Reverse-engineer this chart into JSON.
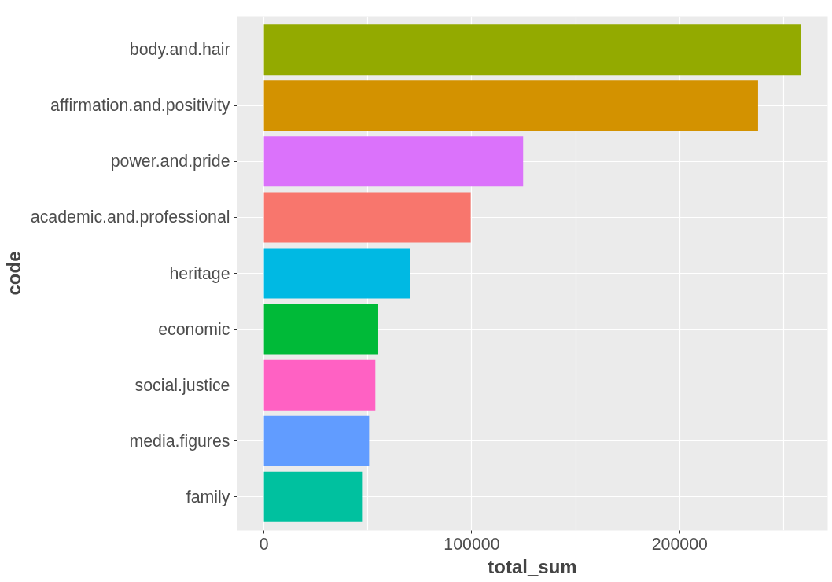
{
  "chart_data": {
    "type": "bar",
    "orientation": "horizontal",
    "xlabel": "total_sum",
    "ylabel": "code",
    "categories": [
      "body.and.hair",
      "affirmation.and.positivity",
      "power.and.pride",
      "academic.and.professional",
      "heritage",
      "economic",
      "social.justice",
      "media.figures",
      "family"
    ],
    "values": [
      258300,
      237700,
      124700,
      99500,
      70200,
      55000,
      53600,
      50600,
      47200
    ],
    "colors": [
      "#93aa00",
      "#d39200",
      "#db72fb",
      "#f8766d",
      "#00b9e3",
      "#00ba38",
      "#ff61c3",
      "#619cff",
      "#00c19f"
    ],
    "xlim": [
      -12900,
      271200
    ],
    "xticks": [
      0,
      {
        "value": 50000,
        "label": null
      },
      100000,
      {
        "value": 150000,
        "label": null
      },
      200000,
      {
        "value": 250000,
        "label": null
      }
    ],
    "grid": true
  }
}
